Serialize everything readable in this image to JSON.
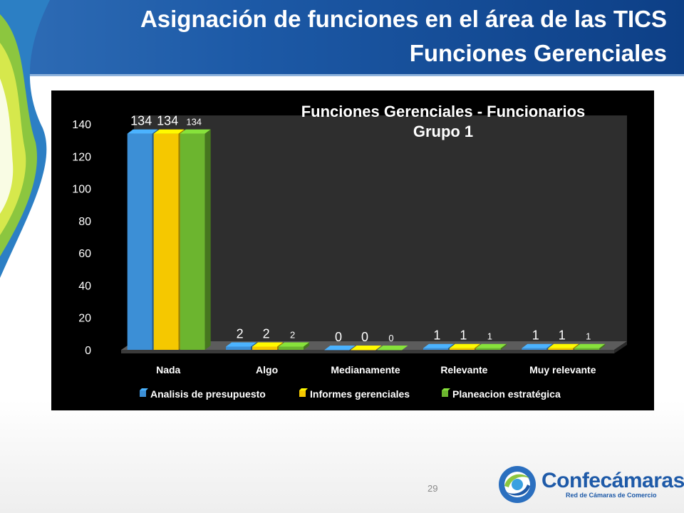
{
  "header": {
    "title_line1": "Asignación de funciones en el área de las TICS",
    "title_line2": "Funciones Gerenciales"
  },
  "colors": {
    "header_blue": "#1d5aa7",
    "series_blue": "#3c8fd6",
    "series_yellow": "#f5c800",
    "series_green": "#6cb52f"
  },
  "chart_data": {
    "type": "bar",
    "title": "Funciones Gerenciales - Funcionarios Grupo 1",
    "title_lines": [
      "Funciones Gerenciales - Funcionarios",
      "Grupo 1"
    ],
    "categories": [
      "Nada",
      "Algo",
      "Medianamente",
      "Relevante",
      "Muy relevante"
    ],
    "series": [
      {
        "name": "Analisis de presupuesto",
        "values": [
          134,
          2,
          0,
          1,
          1
        ],
        "color": "#3c8fd6"
      },
      {
        "name": "Informes gerenciales",
        "values": [
          134,
          2,
          0,
          1,
          1
        ],
        "color": "#f5c800"
      },
      {
        "name": "Planeacion estratégica",
        "values": [
          134,
          2,
          0,
          1,
          1
        ],
        "color": "#6cb52f"
      }
    ],
    "ylim": [
      0,
      140
    ],
    "yticks": [
      0,
      20,
      40,
      60,
      80,
      100,
      120,
      140
    ],
    "three_d": true,
    "legend": "bottom",
    "xlabel": "",
    "ylabel": ""
  },
  "footer": {
    "page_number": "29",
    "logo_text": "Confecámaras",
    "logo_subtext": "Red de Cámaras de Comercio"
  }
}
